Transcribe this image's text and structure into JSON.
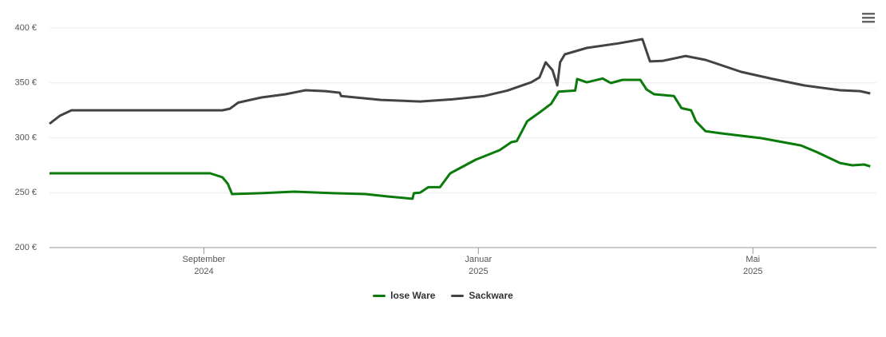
{
  "chart_data": {
    "type": "line",
    "xlim": [
      6.75,
      18.8
    ],
    "xticks": [
      {
        "value": 9,
        "label": "September\n2024"
      },
      {
        "value": 13,
        "label": "Januar\n2025"
      },
      {
        "value": 17,
        "label": "Mai\n2025"
      }
    ],
    "ylim": [
      200,
      400
    ],
    "yticks": [
      {
        "value": 200,
        "label": "200 €"
      },
      {
        "value": 250,
        "label": "250 €"
      },
      {
        "value": 300,
        "label": "300 €"
      },
      {
        "value": 350,
        "label": "350 €"
      },
      {
        "value": 400,
        "label": "400 €"
      }
    ],
    "grid": true,
    "legend": "bottom",
    "series": [
      {
        "name": "lose Ware",
        "color": "#0a7a0a",
        "x": [
          6.75,
          9.09,
          9.27,
          9.35,
          9.41,
          9.84,
          10.31,
          10.88,
          11.35,
          11.69,
          12.04,
          12.06,
          12.15,
          12.27,
          12.44,
          12.59,
          12.96,
          13.31,
          13.48,
          13.56,
          13.71,
          13.89,
          14.06,
          14.17,
          14.41,
          14.44,
          14.58,
          14.81,
          14.93,
          15.1,
          15.36,
          15.45,
          15.56,
          15.85,
          15.96,
          16.1,
          16.17,
          16.31,
          16.54,
          17.12,
          17.7,
          17.93,
          18.27,
          18.45,
          18.62,
          18.71
        ],
        "values": [
          267.6,
          267.6,
          264,
          258,
          248.7,
          249.5,
          250.9,
          249.5,
          248.7,
          246.5,
          244.4,
          249.5,
          250,
          255,
          255,
          267.6,
          280,
          288.7,
          296,
          297,
          315,
          323,
          331,
          342,
          343,
          353.5,
          350.5,
          354,
          349.8,
          352.7,
          352.7,
          344,
          339.6,
          338,
          327,
          325,
          315,
          306,
          304,
          299.6,
          293,
          287,
          277,
          274.9,
          275.6,
          274
        ]
      },
      {
        "name": "Sackware",
        "color": "#434343",
        "x": [
          6.75,
          6.9,
          7.07,
          9.27,
          9.38,
          9.5,
          9.84,
          10.19,
          10.48,
          10.77,
          10.98,
          11.0,
          11.58,
          12.15,
          12.62,
          13.08,
          13.42,
          13.77,
          13.89,
          13.98,
          14.08,
          14.15,
          14.19,
          14.26,
          14.58,
          15.04,
          15.39,
          15.5,
          15.68,
          16.02,
          16.31,
          16.83,
          17.29,
          17.75,
          18.27,
          18.56,
          18.71
        ],
        "values": [
          312.7,
          320,
          325,
          325,
          326.5,
          332,
          336.7,
          339.6,
          343.3,
          342.5,
          341,
          338,
          334.5,
          333,
          335,
          338,
          343,
          350.5,
          355,
          368.7,
          361.5,
          347.6,
          368.7,
          376,
          381.8,
          386,
          389.8,
          369.5,
          370,
          374.5,
          370.9,
          360,
          353.5,
          347.6,
          343.3,
          342.5,
          340.4
        ]
      }
    ]
  }
}
